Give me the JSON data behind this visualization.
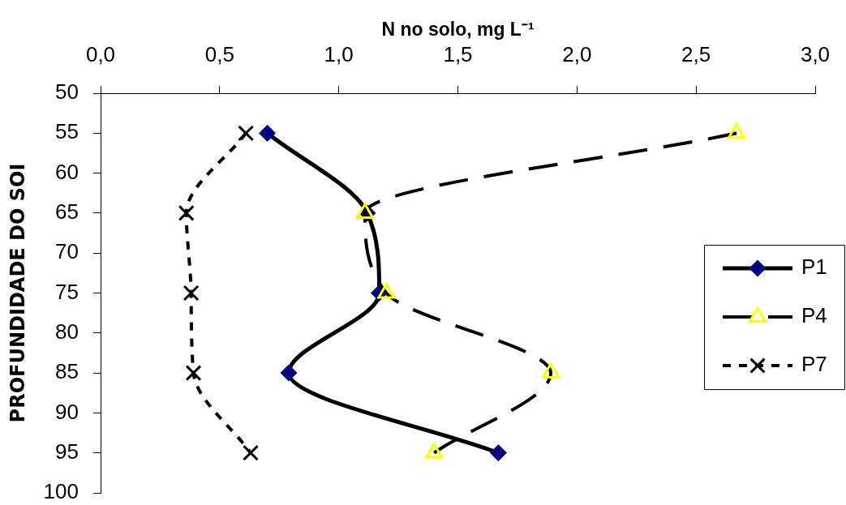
{
  "chart_data": {
    "type": "line",
    "xlabel": "N no solo, mg L⁻¹",
    "ylabel": "PROFUNDIDADE DO SOI",
    "xlim": [
      0,
      3
    ],
    "xticks": [
      {
        "value": 0,
        "label": "0,0"
      },
      {
        "value": 0.5,
        "label": "0,5"
      },
      {
        "value": 1,
        "label": "1,0"
      },
      {
        "value": 1.5,
        "label": "1,5"
      },
      {
        "value": 2,
        "label": "2,0"
      },
      {
        "value": 2.5,
        "label": "2,5"
      },
      {
        "value": 3,
        "label": "3,0"
      }
    ],
    "ylim": [
      100,
      50
    ],
    "yticks": [
      50,
      55,
      60,
      65,
      70,
      75,
      80,
      85,
      90,
      95,
      100
    ],
    "legend": "right",
    "series": [
      {
        "name": "P1",
        "color": "#000000",
        "colors": [
          "#000080",
          "#000080",
          "#000080",
          "#000080",
          "#000080"
        ],
        "marker": "diamond",
        "line_style": "solid",
        "x": [
          0.7,
          1.12,
          1.17,
          0.79,
          1.67
        ],
        "values": [
          55,
          65,
          75,
          85,
          95
        ]
      },
      {
        "name": "P4",
        "color": "#000000",
        "colors": [
          "#ffff00",
          "#ffff00",
          "#ffff00",
          "#ffff00",
          "#ffff00"
        ],
        "marker": "triangle",
        "line_style": "dashed",
        "x": [
          2.67,
          1.11,
          1.2,
          1.89,
          1.4
        ],
        "values": [
          55,
          65,
          75,
          85,
          95
        ]
      },
      {
        "name": "P7",
        "color": "#000000",
        "colors": [
          "#000000",
          "#000000",
          "#000000",
          "#000000",
          "#000000"
        ],
        "marker": "cross",
        "line_style": "dotted",
        "x": [
          0.61,
          0.36,
          0.38,
          0.39,
          0.63
        ],
        "values": [
          55,
          65,
          75,
          85,
          95
        ]
      }
    ]
  }
}
